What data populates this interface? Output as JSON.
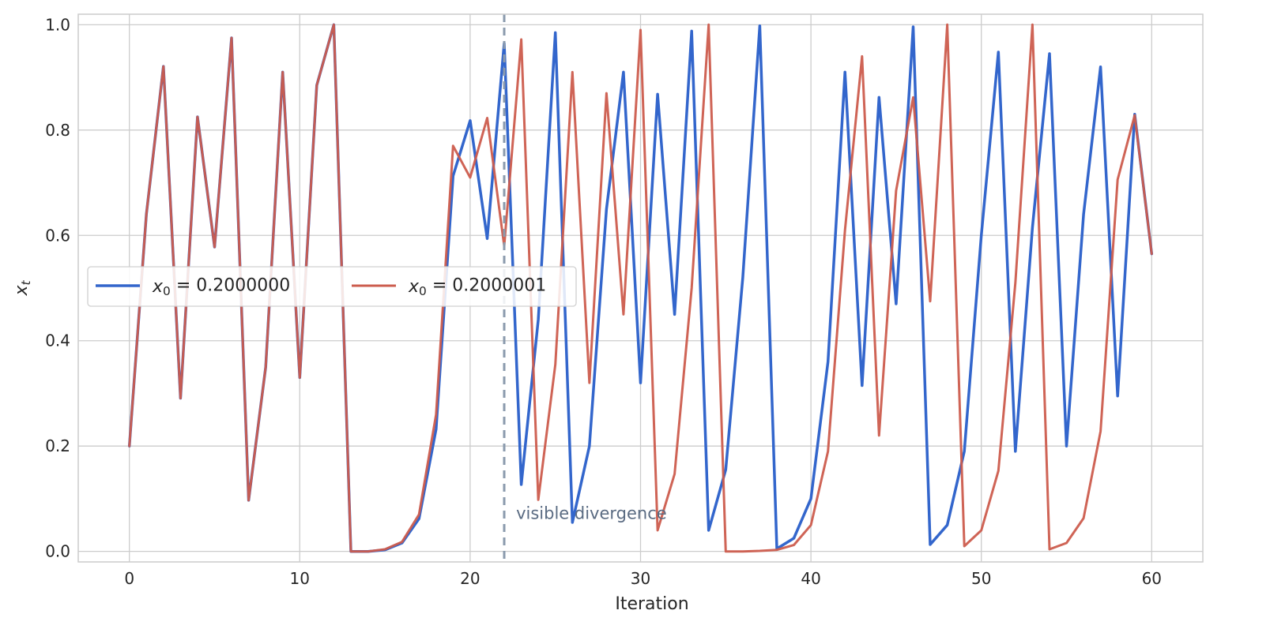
{
  "chart_data": {
    "type": "line",
    "title": "",
    "xlabel": "Iteration",
    "ylabel": "x_t",
    "xlim": [
      -3,
      63
    ],
    "ylim": [
      -0.02,
      1.02
    ],
    "x_ticks": [
      0,
      10,
      20,
      30,
      40,
      50,
      60
    ],
    "x_tick_labels": [
      "0",
      "10",
      "20",
      "30",
      "40",
      "50",
      "60"
    ],
    "y_ticks": [
      0.0,
      0.2,
      0.4,
      0.6,
      0.8,
      1.0
    ],
    "y_tick_labels": [
      "0.0",
      "0.2",
      "0.4",
      "0.6",
      "0.8",
      "1.0"
    ],
    "grid": true,
    "legend_position": "center-left",
    "x": [
      0,
      1,
      2,
      3,
      4,
      5,
      6,
      7,
      8,
      9,
      10,
      11,
      12,
      13,
      14,
      15,
      16,
      17,
      18,
      19,
      20,
      21,
      22,
      23,
      24,
      25,
      26,
      27,
      28,
      29,
      30,
      31,
      32,
      33,
      34,
      35,
      36,
      37,
      38,
      39,
      40,
      41,
      42,
      43,
      44,
      45,
      46,
      47,
      48,
      49,
      50,
      51,
      52,
      53,
      54,
      55,
      56,
      57,
      58,
      59,
      60
    ],
    "series": [
      {
        "name": "x_0 = 0.2000000",
        "color": "#3366cc",
        "values": [
          0.2,
          0.64,
          0.921,
          0.291,
          0.825,
          0.578,
          0.975,
          0.097,
          0.35,
          0.91,
          0.33,
          0.885,
          1.0,
          0.0,
          0.0,
          0.003,
          0.016,
          0.062,
          0.232,
          0.713,
          0.818,
          0.594,
          0.965,
          0.127,
          0.44,
          0.985,
          0.055,
          0.2,
          0.65,
          0.91,
          0.32,
          0.868,
          0.45,
          0.988,
          0.04,
          0.155,
          0.52,
          0.998,
          0.005,
          0.025,
          0.1,
          0.36,
          0.91,
          0.315,
          0.862,
          0.47,
          0.996,
          0.013,
          0.05,
          0.19,
          0.6,
          0.948,
          0.19,
          0.615,
          0.945,
          0.2,
          0.64,
          0.92,
          0.295,
          0.83,
          0.565
        ]
      },
      {
        "name": "x_0 = 0.2000001",
        "color": "#cc5c4d",
        "values": [
          0.2,
          0.64,
          0.921,
          0.291,
          0.825,
          0.578,
          0.975,
          0.097,
          0.35,
          0.91,
          0.33,
          0.885,
          1.0,
          0.0,
          0.0,
          0.004,
          0.018,
          0.07,
          0.26,
          0.77,
          0.71,
          0.823,
          0.58,
          0.972,
          0.098,
          0.355,
          0.91,
          0.32,
          0.87,
          0.45,
          0.99,
          0.04,
          0.147,
          0.5,
          1.0,
          0.0,
          0.0,
          0.001,
          0.003,
          0.012,
          0.05,
          0.19,
          0.61,
          0.94,
          0.22,
          0.685,
          0.862,
          0.475,
          1.0,
          0.01,
          0.04,
          0.153,
          0.51,
          1.0,
          0.004,
          0.016,
          0.063,
          0.228,
          0.706,
          0.828,
          0.565
        ]
      }
    ],
    "annotations": [
      {
        "x": 22,
        "type": "vline",
        "color": "#8a9aad"
      },
      {
        "x": 22.7,
        "y": 0.062,
        "text": "visible divergence",
        "color": "#5a6b82"
      }
    ]
  }
}
